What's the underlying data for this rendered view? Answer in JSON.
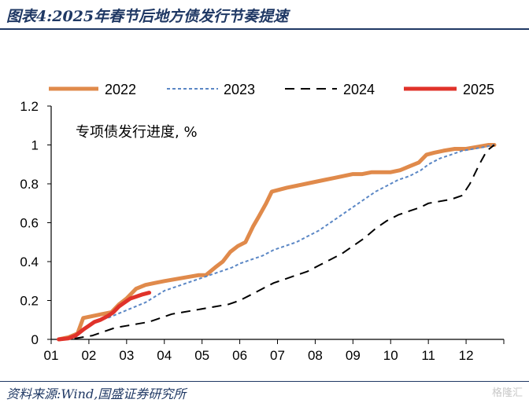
{
  "figure": {
    "title": "图表4:2025年春节后地方债发行节奏提速",
    "source": "资料来源:Wind,国盛证券研究所",
    "watermark": "格隆汇"
  },
  "chart_data": {
    "type": "line",
    "title": "",
    "annotation": "专项债发行进度, %",
    "xlabel": "",
    "ylabel": "",
    "x_ticks": [
      "01",
      "02",
      "03",
      "04",
      "05",
      "06",
      "07",
      "08",
      "09",
      "10",
      "11",
      "12"
    ],
    "x_range": [
      1,
      13
    ],
    "y_ticks": [
      "0",
      "0.2",
      "0.4",
      "0.6",
      "0.8",
      "1",
      "1.2"
    ],
    "ylim": [
      0,
      1.2
    ],
    "grid": false,
    "legend_position": "top",
    "series": [
      {
        "name": "2022",
        "color": "#e08a4b",
        "style": "solid-thick",
        "x": [
          1.2,
          1.45,
          1.7,
          1.85,
          2.1,
          2.35,
          2.6,
          2.8,
          3.0,
          3.25,
          3.5,
          3.75,
          4.0,
          4.3,
          4.6,
          4.9,
          5.1,
          5.35,
          5.55,
          5.75,
          5.95,
          6.15,
          6.35,
          6.5,
          6.7,
          6.85,
          7.05,
          7.25,
          7.5,
          7.75,
          8.0,
          8.25,
          8.5,
          8.75,
          9.0,
          9.25,
          9.5,
          9.75,
          10.0,
          10.25,
          10.5,
          10.75,
          10.95,
          11.15,
          11.4,
          11.7,
          12.0,
          12.3,
          12.6,
          12.75
        ],
        "y": [
          0.0,
          0.01,
          0.03,
          0.11,
          0.12,
          0.13,
          0.14,
          0.18,
          0.21,
          0.26,
          0.28,
          0.29,
          0.3,
          0.31,
          0.32,
          0.33,
          0.33,
          0.37,
          0.4,
          0.45,
          0.48,
          0.5,
          0.58,
          0.63,
          0.7,
          0.76,
          0.77,
          0.78,
          0.79,
          0.8,
          0.81,
          0.82,
          0.83,
          0.84,
          0.85,
          0.85,
          0.86,
          0.86,
          0.86,
          0.87,
          0.89,
          0.91,
          0.95,
          0.96,
          0.97,
          0.98,
          0.98,
          0.99,
          1.0,
          1.0
        ]
      },
      {
        "name": "2023",
        "color": "#5b87c5",
        "style": "dotted",
        "x": [
          1.2,
          1.5,
          1.75,
          2.0,
          2.25,
          2.5,
          2.75,
          3.0,
          3.25,
          3.5,
          3.75,
          4.0,
          4.3,
          4.6,
          4.9,
          5.2,
          5.5,
          5.8,
          6.0,
          6.3,
          6.6,
          6.9,
          7.2,
          7.5,
          7.8,
          8.1,
          8.4,
          8.7,
          9.0,
          9.3,
          9.6,
          9.9,
          10.2,
          10.5,
          10.8,
          11.0,
          11.3,
          11.6,
          11.9,
          12.2,
          12.5,
          12.75
        ],
        "y": [
          0.0,
          0.01,
          0.03,
          0.07,
          0.1,
          0.11,
          0.13,
          0.15,
          0.17,
          0.19,
          0.22,
          0.25,
          0.27,
          0.29,
          0.31,
          0.33,
          0.35,
          0.37,
          0.39,
          0.41,
          0.43,
          0.46,
          0.48,
          0.5,
          0.53,
          0.56,
          0.6,
          0.64,
          0.68,
          0.72,
          0.76,
          0.79,
          0.82,
          0.84,
          0.87,
          0.9,
          0.93,
          0.95,
          0.97,
          0.98,
          0.99,
          1.0
        ]
      },
      {
        "name": "2024",
        "color": "#000000",
        "style": "dashed",
        "x": [
          1.2,
          1.5,
          1.8,
          2.1,
          2.4,
          2.7,
          3.0,
          3.3,
          3.6,
          3.9,
          4.2,
          4.5,
          4.8,
          5.1,
          5.4,
          5.7,
          6.0,
          6.3,
          6.6,
          6.9,
          7.2,
          7.5,
          7.8,
          8.1,
          8.4,
          8.7,
          9.0,
          9.3,
          9.6,
          9.9,
          10.2,
          10.5,
          10.8,
          11.0,
          11.3,
          11.6,
          11.9,
          12.1,
          12.35,
          12.55,
          12.75
        ],
        "y": [
          0.0,
          0.0,
          0.01,
          0.02,
          0.04,
          0.06,
          0.07,
          0.08,
          0.09,
          0.11,
          0.13,
          0.14,
          0.15,
          0.16,
          0.17,
          0.18,
          0.2,
          0.23,
          0.26,
          0.29,
          0.31,
          0.33,
          0.35,
          0.38,
          0.41,
          0.44,
          0.48,
          0.52,
          0.57,
          0.61,
          0.64,
          0.66,
          0.68,
          0.7,
          0.71,
          0.72,
          0.74,
          0.8,
          0.9,
          0.97,
          1.0
        ]
      },
      {
        "name": "2025",
        "color": "#e0322a",
        "style": "solid-thick",
        "x": [
          1.2,
          1.45,
          1.65,
          1.85,
          2.0,
          2.15,
          2.3,
          2.5,
          2.65,
          2.8,
          2.95,
          3.1,
          3.25,
          3.4,
          3.5,
          3.6
        ],
        "y": [
          0.0,
          0.005,
          0.02,
          0.05,
          0.07,
          0.09,
          0.1,
          0.12,
          0.14,
          0.17,
          0.19,
          0.21,
          0.22,
          0.23,
          0.235,
          0.24
        ]
      }
    ]
  }
}
